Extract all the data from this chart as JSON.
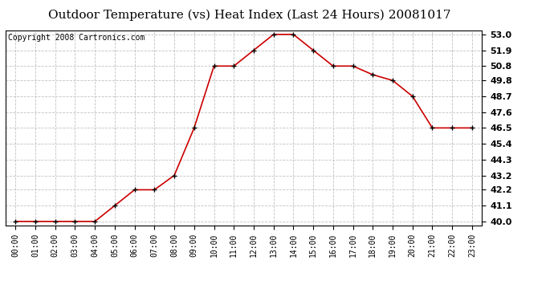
{
  "title": "Outdoor Temperature (vs) Heat Index (Last 24 Hours) 20081017",
  "copyright_text": "Copyright 2008 Cartronics.com",
  "x_labels": [
    "00:00",
    "01:00",
    "02:00",
    "03:00",
    "04:00",
    "05:00",
    "06:00",
    "07:00",
    "08:00",
    "09:00",
    "10:00",
    "11:00",
    "12:00",
    "13:00",
    "14:00",
    "15:00",
    "16:00",
    "17:00",
    "18:00",
    "19:00",
    "20:00",
    "21:00",
    "22:00",
    "23:00"
  ],
  "y_values": [
    40.0,
    40.0,
    40.0,
    40.0,
    40.0,
    41.1,
    42.2,
    42.2,
    43.2,
    46.5,
    50.8,
    50.8,
    51.9,
    53.0,
    53.0,
    51.9,
    50.8,
    50.8,
    50.2,
    49.8,
    48.7,
    46.5,
    46.5,
    46.5
  ],
  "y_ticks": [
    40.0,
    41.1,
    42.2,
    43.2,
    44.3,
    45.4,
    46.5,
    47.6,
    48.7,
    49.8,
    50.8,
    51.9,
    53.0
  ],
  "ylim": [
    39.7,
    53.3
  ],
  "line_color": "#cc0000",
  "marker": "+",
  "marker_color": "#000000",
  "bg_color": "#ffffff",
  "grid_color": "#bbbbbb",
  "title_fontsize": 11,
  "copyright_fontsize": 7,
  "tick_fontsize": 7,
  "ytick_fontsize": 8
}
